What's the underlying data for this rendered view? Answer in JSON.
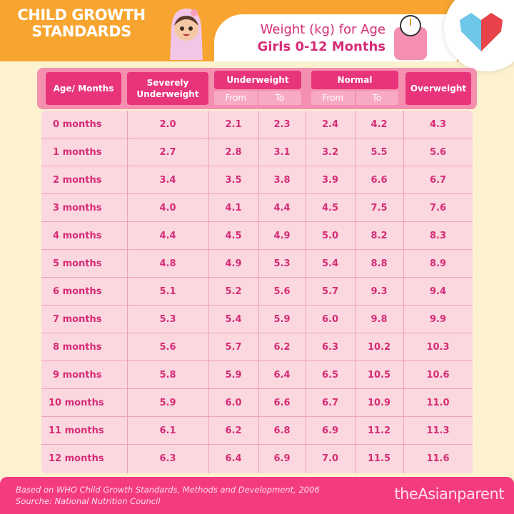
{
  "header": {
    "brand": "CHILD GROWTH STANDARDS",
    "title_line1": "Weight (kg) for Age",
    "title_line2": "Girls 0-12 Months"
  },
  "columns": {
    "age": "Age/ Months",
    "severe": "Severely Underweight",
    "underweight": "Underweight",
    "normal": "Normal",
    "overweight": "Overweight",
    "from": "From",
    "to": "To"
  },
  "rows": [
    [
      "0 months",
      "2.0",
      "2.1",
      "2.3",
      "2.4",
      "4.2",
      "4.3"
    ],
    [
      "1 months",
      "2.7",
      "2.8",
      "3.1",
      "3.2",
      "5.5",
      "5.6"
    ],
    [
      "2 months",
      "3.4",
      "3.5",
      "3.8",
      "3.9",
      "6.6",
      "6.7"
    ],
    [
      "3 months",
      "4.0",
      "4.1",
      "4.4",
      "4.5",
      "7.5",
      "7.6"
    ],
    [
      "4 months",
      "4.4",
      "4.5",
      "4.9",
      "5.0",
      "8.2",
      "8.3"
    ],
    [
      "5 months",
      "4.8",
      "4.9",
      "5.3",
      "5.4",
      "8.8",
      "8.9"
    ],
    [
      "6 months",
      "5.1",
      "5.2",
      "5.6",
      "5.7",
      "9.3",
      "9.4"
    ],
    [
      "7 months",
      "5.3",
      "5.4",
      "5.9",
      "6.0",
      "9.8",
      "9.9"
    ],
    [
      "8 months",
      "5.6",
      "5.7",
      "6.2",
      "6.3",
      "10.2",
      "10.3"
    ],
    [
      "9 months",
      "5.8",
      "5.9",
      "6.4",
      "6.5",
      "10.5",
      "10.6"
    ],
    [
      "10 months",
      "5.9",
      "6.0",
      "6.6",
      "6.7",
      "10.9",
      "11.0"
    ],
    [
      "11 months",
      "6.1",
      "6.2",
      "6.8",
      "6.9",
      "11.2",
      "11.3"
    ],
    [
      "12 months",
      "6.3",
      "6.4",
      "6.9",
      "7.0",
      "11.5",
      "11.6"
    ]
  ],
  "footer": {
    "source_line1": "Based on WHO Child Growth Standards, Methods and Development, 2006",
    "source_line2": "Sourche: National Nutrition Council",
    "logo_text": "theAsianparent"
  },
  "colors": {
    "accent": "#e8347a",
    "orange": "#f7a530",
    "cream": "#fdf2cf",
    "row_bg": "#fbd8df"
  }
}
